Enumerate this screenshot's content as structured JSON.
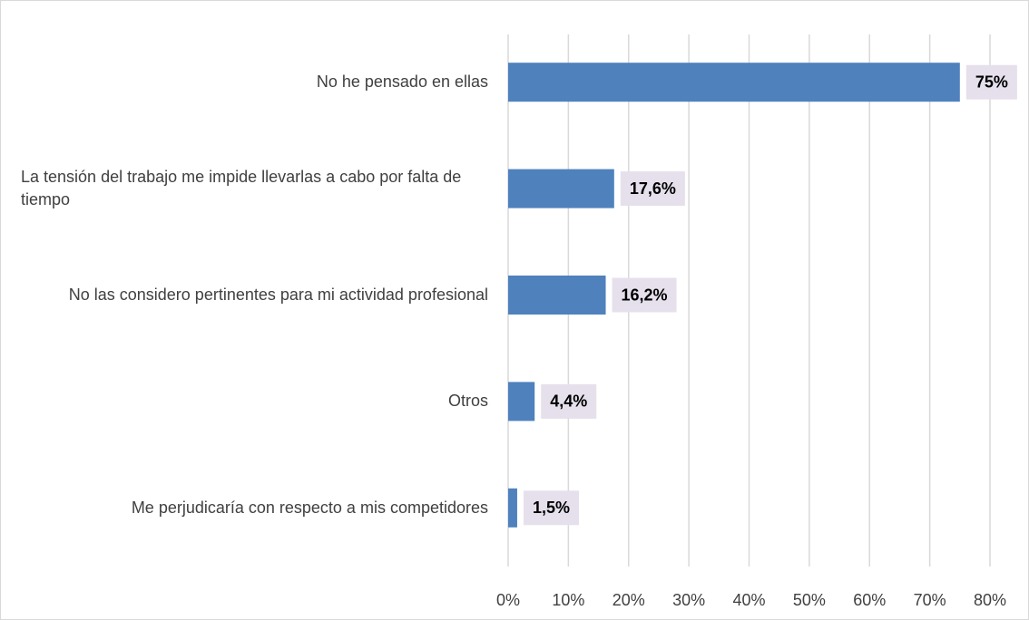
{
  "chart_data": {
    "type": "bar",
    "orientation": "horizontal",
    "categories": [
      "No he pensado en ellas",
      "La tensión del trabajo me impide llevarlas a cabo por falta de tiempo",
      "No las considero pertinentes para mi actividad profesional",
      "Otros",
      "Me perjudicaría con respecto a mis competidores"
    ],
    "values": [
      75,
      17.6,
      16.2,
      4.4,
      1.5
    ],
    "value_labels": [
      "75%",
      "17,6%",
      "16,2%",
      "4,4%",
      "1,5%"
    ],
    "color": "#4f81bd",
    "xlim": [
      0,
      80
    ],
    "xticks": [
      {
        "value": 0,
        "label": "0%"
      },
      {
        "value": 10,
        "label": "10%"
      },
      {
        "value": 20,
        "label": "20%"
      },
      {
        "value": 30,
        "label": "30%"
      },
      {
        "value": 40,
        "label": "40%"
      },
      {
        "value": 50,
        "label": "50%"
      },
      {
        "value": 60,
        "label": "60%"
      },
      {
        "value": 70,
        "label": "70%"
      },
      {
        "value": 80,
        "label": "80%"
      }
    ],
    "grid": true
  }
}
